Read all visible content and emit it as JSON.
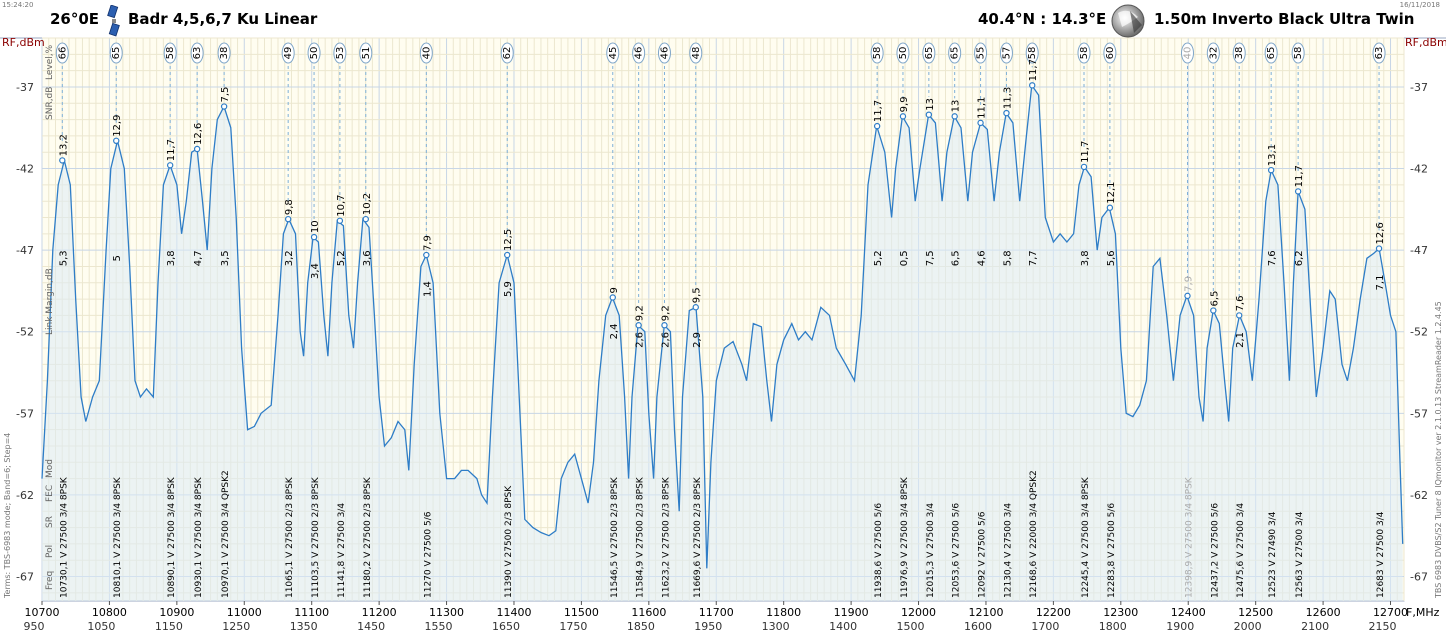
{
  "header": {
    "time": "15:24:20",
    "date": "16/11/2018",
    "orbital": "26°0E",
    "satellite": "Badr 4,5,6,7 Ku Linear",
    "location": "40.4°N : 14.3°E",
    "dish": "1.50m  Inverto Black Ultra Twin",
    "icons": [
      "satellite-icon",
      "globe-dish-icon"
    ]
  },
  "side_left": "Terms:  TBS-6983 mode; Band=6; Step=4",
  "side_right": "TBS 6983 DVBS/S2 Tuner 8    IQmonitor  ver 2.1.0.13    StreamReader 1.2.4.45",
  "chart_data": {
    "type": "line",
    "title": "",
    "ylabel": "RF,dBm",
    "xlabel": "F,MHz",
    "ylim": [
      -68.5,
      -34
    ],
    "xlim": [
      10700,
      12720
    ],
    "yticks": [
      -37,
      -42,
      -47,
      -52,
      -57,
      -62,
      -67
    ],
    "xticks": [
      10700,
      10800,
      10900,
      11000,
      11100,
      11200,
      11300,
      11400,
      11500,
      11600,
      11700,
      11800,
      11900,
      12000,
      12100,
      12200,
      12300,
      12400,
      12500,
      12600,
      12700
    ],
    "if_ticks": [
      "950",
      "1050",
      "1150",
      "1250",
      "1350",
      "1450",
      "1550",
      "1650",
      "1750",
      "1850",
      "1950",
      "1300",
      "1400",
      "1500",
      "1600",
      "1700",
      "1800",
      "1900",
      "2000",
      "2100",
      "2150"
    ],
    "row_labels_top": [
      "Level,%",
      "SNR,dB"
    ],
    "row_label_mid": "Link Margin,dB",
    "row_labels_bottom": [
      "Freq",
      "Pol",
      "SR",
      "FEC",
      "Mod"
    ],
    "grid": true,
    "spectrum": [
      [
        10700,
        -61
      ],
      [
        10708,
        -55
      ],
      [
        10716,
        -47
      ],
      [
        10724,
        -43
      ],
      [
        10733,
        -41.5
      ],
      [
        10742,
        -43
      ],
      [
        10750,
        -50
      ],
      [
        10758,
        -56
      ],
      [
        10765,
        -57.5
      ],
      [
        10775,
        -56
      ],
      [
        10785,
        -55
      ],
      [
        10795,
        -47
      ],
      [
        10802,
        -42
      ],
      [
        10812,
        -40.3
      ],
      [
        10822,
        -42
      ],
      [
        10830,
        -48
      ],
      [
        10838,
        -55
      ],
      [
        10846,
        -56
      ],
      [
        10855,
        -55.5
      ],
      [
        10865,
        -56
      ],
      [
        10872,
        -49
      ],
      [
        10880,
        -43
      ],
      [
        10890,
        -41.8
      ],
      [
        10900,
        -43
      ],
      [
        10907,
        -46
      ],
      [
        10914,
        -44
      ],
      [
        10922,
        -41
      ],
      [
        10930,
        -40.8
      ],
      [
        10938,
        -44
      ],
      [
        10945,
        -47
      ],
      [
        10952,
        -42
      ],
      [
        10960,
        -39
      ],
      [
        10970,
        -38.2
      ],
      [
        10980,
        -39.5
      ],
      [
        10988,
        -45
      ],
      [
        10996,
        -53
      ],
      [
        11005,
        -58
      ],
      [
        11015,
        -57.8
      ],
      [
        11025,
        -57
      ],
      [
        11040,
        -56.5
      ],
      [
        11050,
        -51
      ],
      [
        11058,
        -46
      ],
      [
        11066,
        -45.1
      ],
      [
        11076,
        -46
      ],
      [
        11083,
        -52
      ],
      [
        11088,
        -53.5
      ],
      [
        11094,
        -49
      ],
      [
        11102,
        -46.2
      ],
      [
        11110,
        -46.5
      ],
      [
        11118,
        -51
      ],
      [
        11124,
        -53.5
      ],
      [
        11130,
        -49
      ],
      [
        11138,
        -45.2
      ],
      [
        11147,
        -45.5
      ],
      [
        11155,
        -51
      ],
      [
        11162,
        -53
      ],
      [
        11168,
        -49
      ],
      [
        11176,
        -45.1
      ],
      [
        11185,
        -45.6
      ],
      [
        11193,
        -51
      ],
      [
        11200,
        -56
      ],
      [
        11208,
        -59
      ],
      [
        11218,
        -58.5
      ],
      [
        11228,
        -57.5
      ],
      [
        11238,
        -58
      ],
      [
        11244,
        -60.5
      ],
      [
        11252,
        -54
      ],
      [
        11262,
        -48
      ],
      [
        11270,
        -47.3
      ],
      [
        11280,
        -49
      ],
      [
        11290,
        -57
      ],
      [
        11300,
        -61
      ],
      [
        11312,
        -61
      ],
      [
        11322,
        -60.5
      ],
      [
        11332,
        -60.5
      ],
      [
        11345,
        -61
      ],
      [
        11352,
        -62
      ],
      [
        11360,
        -62.5
      ],
      [
        11368,
        -56
      ],
      [
        11378,
        -49
      ],
      [
        11390,
        -47.3
      ],
      [
        11400,
        -49
      ],
      [
        11410,
        -58
      ],
      [
        11416,
        -63.5
      ],
      [
        11428,
        -64
      ],
      [
        11440,
        -64.3
      ],
      [
        11452,
        -64.5
      ],
      [
        11462,
        -64.2
      ],
      [
        11470,
        -61
      ],
      [
        11480,
        -60
      ],
      [
        11490,
        -59.5
      ],
      [
        11500,
        -61
      ],
      [
        11510,
        -62.5
      ],
      [
        11518,
        -60
      ],
      [
        11526,
        -55
      ],
      [
        11536,
        -51
      ],
      [
        11546,
        -49.9
      ],
      [
        11556,
        -51
      ],
      [
        11564,
        -56
      ],
      [
        11570,
        -61
      ],
      [
        11575,
        -56
      ],
      [
        11584,
        -51.6
      ],
      [
        11594,
        -52
      ],
      [
        11600,
        -57
      ],
      [
        11607,
        -61
      ],
      [
        11612,
        -56
      ],
      [
        11623,
        -51.6
      ],
      [
        11632,
        -52
      ],
      [
        11638,
        -58
      ],
      [
        11645,
        -63
      ],
      [
        11650,
        -56
      ],
      [
        11660,
        -50.7
      ],
      [
        11670,
        -50.5
      ],
      [
        11680,
        -56
      ],
      [
        11686,
        -66.5
      ],
      [
        11692,
        -60
      ],
      [
        11700,
        -55
      ],
      [
        11712,
        -53
      ],
      [
        11725,
        -52.6
      ],
      [
        11738,
        -54
      ],
      [
        11745,
        -55
      ],
      [
        11755,
        -51.5
      ],
      [
        11767,
        -51.7
      ],
      [
        11775,
        -55
      ],
      [
        11782,
        -57.5
      ],
      [
        11790,
        -54
      ],
      [
        11800,
        -52.5
      ],
      [
        11812,
        -51.5
      ],
      [
        11822,
        -52.5
      ],
      [
        11832,
        -52
      ],
      [
        11842,
        -52.5
      ],
      [
        11855,
        -50.5
      ],
      [
        11868,
        -51
      ],
      [
        11878,
        -53
      ],
      [
        11892,
        -54
      ],
      [
        11905,
        -55
      ],
      [
        11915,
        -51
      ],
      [
        11925,
        -43
      ],
      [
        11938,
        -39.4
      ],
      [
        11950,
        -41
      ],
      [
        11960,
        -45
      ],
      [
        11966,
        -42
      ],
      [
        11976,
        -38.8
      ],
      [
        11986,
        -39.5
      ],
      [
        11995,
        -44
      ],
      [
        12002,
        -42
      ],
      [
        12015,
        -38.7
      ],
      [
        12025,
        -39.2
      ],
      [
        12035,
        -44
      ],
      [
        12042,
        -41
      ],
      [
        12053,
        -38.8
      ],
      [
        12063,
        -39.5
      ],
      [
        12073,
        -44
      ],
      [
        12080,
        -41
      ],
      [
        12092,
        -39.2
      ],
      [
        12102,
        -39.6
      ],
      [
        12112,
        -44
      ],
      [
        12120,
        -41
      ],
      [
        12130,
        -38.6
      ],
      [
        12140,
        -39.2
      ],
      [
        12150,
        -44
      ],
      [
        12160,
        -40
      ],
      [
        12168,
        -36.9
      ],
      [
        12178,
        -37.5
      ],
      [
        12188,
        -45
      ],
      [
        12200,
        -46.5
      ],
      [
        12210,
        -46
      ],
      [
        12220,
        -46.5
      ],
      [
        12230,
        -46
      ],
      [
        12238,
        -43
      ],
      [
        12246,
        -41.9
      ],
      [
        12256,
        -42.5
      ],
      [
        12265,
        -47
      ],
      [
        12272,
        -45
      ],
      [
        12283,
        -44.4
      ],
      [
        12292,
        -46
      ],
      [
        12300,
        -53
      ],
      [
        12308,
        -57
      ],
      [
        12318,
        -57.2
      ],
      [
        12328,
        -56.5
      ],
      [
        12338,
        -55
      ],
      [
        12348,
        -48
      ],
      [
        12358,
        -47.5
      ],
      [
        12368,
        -51
      ],
      [
        12378,
        -55
      ],
      [
        12388,
        -51
      ],
      [
        12398,
        -49.8
      ],
      [
        12408,
        -51
      ],
      [
        12416,
        -56
      ],
      [
        12422,
        -57.5
      ],
      [
        12428,
        -53
      ],
      [
        12437,
        -50.7
      ],
      [
        12446,
        -51.5
      ],
      [
        12454,
        -55
      ],
      [
        12460,
        -57.5
      ],
      [
        12466,
        -53
      ],
      [
        12476,
        -51
      ],
      [
        12486,
        -52
      ],
      [
        12495,
        -55
      ],
      [
        12505,
        -50
      ],
      [
        12515,
        -44
      ],
      [
        12523,
        -42.1
      ],
      [
        12533,
        -43
      ],
      [
        12542,
        -49
      ],
      [
        12550,
        -55
      ],
      [
        12556,
        -49
      ],
      [
        12563,
        -43.4
      ],
      [
        12573,
        -44.5
      ],
      [
        12582,
        -51
      ],
      [
        12590,
        -56
      ],
      [
        12600,
        -53
      ],
      [
        12610,
        -49.5
      ],
      [
        12618,
        -50
      ],
      [
        12628,
        -54
      ],
      [
        12636,
        -55
      ],
      [
        12645,
        -53
      ],
      [
        12655,
        -50
      ],
      [
        12665,
        -47.5
      ],
      [
        12675,
        -47.2
      ],
      [
        12683,
        -46.9
      ],
      [
        12692,
        -49
      ],
      [
        12700,
        -51
      ],
      [
        12708,
        -52
      ],
      [
        12714,
        -60
      ],
      [
        12718,
        -65
      ]
    ],
    "transponders": [
      {
        "freq": 10730.1,
        "pol": "V",
        "sr": 27500,
        "fec": "3/4",
        "mod": "8PSK",
        "level": 66,
        "snr": "13,2",
        "margin": "5,3",
        "peak": -41.5
      },
      {
        "freq": 10810.1,
        "pol": "V",
        "sr": 27500,
        "fec": "3/4",
        "mod": "8PSK",
        "level": 65,
        "snr": "12,9",
        "margin": "5",
        "peak": -40.3
      },
      {
        "freq": 10890.1,
        "pol": "V",
        "sr": 27500,
        "fec": "3/4",
        "mod": "8PSK",
        "level": 58,
        "snr": "11,7",
        "margin": "3,8",
        "peak": -41.8
      },
      {
        "freq": 10930.1,
        "pol": "V",
        "sr": 27500,
        "fec": "3/4",
        "mod": "8PSK",
        "level": 63,
        "snr": "12,6",
        "margin": "4,7",
        "peak": -40.8
      },
      {
        "freq": 10970.1,
        "pol": "V",
        "sr": 27500,
        "fec": "3/4",
        "mod": "QPSK2",
        "level": 38,
        "snr": "7,5",
        "margin": "3,5",
        "peak": -38.2
      },
      {
        "freq": 11065.1,
        "pol": "V",
        "sr": 27500,
        "fec": "2/3",
        "mod": "8PSK",
        "level": 49,
        "snr": "9,8",
        "margin": "3,2",
        "peak": -45.1
      },
      {
        "freq": 11103.5,
        "pol": "V",
        "sr": 27500,
        "fec": "2/3",
        "mod": "8PSK",
        "level": 50,
        "snr": "10",
        "margin": "3,4",
        "peak": -46.2
      },
      {
        "freq": 11141.8,
        "pol": "V",
        "sr": 27500,
        "fec": "3/4",
        "mod": "",
        "level": 53,
        "snr": "10,7",
        "margin": "5,2",
        "peak": -45.2
      },
      {
        "freq": 11180.2,
        "pol": "V",
        "sr": 27500,
        "fec": "2/3",
        "mod": "8PSK",
        "level": 51,
        "snr": "10,2",
        "margin": "3,6",
        "peak": -45.1
      },
      {
        "freq": 11270,
        "pol": "V",
        "sr": 27500,
        "fec": "5/6",
        "mod": "",
        "level": 40,
        "snr": "7,9",
        "margin": "1,4",
        "peak": -47.3
      },
      {
        "freq": 11390,
        "pol": "V",
        "sr": 27500,
        "fec": "2/3",
        "mod": "8PSK",
        "level": 62,
        "snr": "12,5",
        "margin": "5,9",
        "peak": -47.3
      },
      {
        "freq": 11546.5,
        "pol": "V",
        "sr": 27500,
        "fec": "2/3",
        "mod": "8PSK",
        "level": 45,
        "snr": "9",
        "margin": "2,4",
        "peak": -49.9
      },
      {
        "freq": 11584.9,
        "pol": "V",
        "sr": 27500,
        "fec": "2/3",
        "mod": "8PSK",
        "level": 46,
        "snr": "9,2",
        "margin": "2,6",
        "peak": -51.6
      },
      {
        "freq": 11623.2,
        "pol": "V",
        "sr": 27500,
        "fec": "2/3",
        "mod": "8PSK",
        "level": 46,
        "snr": "9,2",
        "margin": "2,6",
        "peak": -51.6
      },
      {
        "freq": 11669.6,
        "pol": "V",
        "sr": 27500,
        "fec": "2/3",
        "mod": "8PSK",
        "level": 48,
        "snr": "9,5",
        "margin": "2,9",
        "peak": -50.5
      },
      {
        "freq": 11938.6,
        "pol": "V",
        "sr": 27500,
        "fec": "5/6",
        "mod": "",
        "level": 58,
        "snr": "11,7",
        "margin": "5,2",
        "peak": -39.4
      },
      {
        "freq": 11976.9,
        "pol": "V",
        "sr": 27500,
        "fec": "3/4",
        "mod": "8PSK",
        "level": 50,
        "snr": "9,9",
        "margin": "0,5",
        "peak": -38.8
      },
      {
        "freq": 12015.3,
        "pol": "V",
        "sr": 27500,
        "fec": "3/4",
        "mod": "",
        "level": 65,
        "snr": "13",
        "margin": "7,5",
        "peak": -38.7
      },
      {
        "freq": 12053.6,
        "pol": "V",
        "sr": 27500,
        "fec": "5/6",
        "mod": "",
        "level": 65,
        "snr": "13",
        "margin": "6,5",
        "peak": -38.8
      },
      {
        "freq": 12092,
        "pol": "V",
        "sr": 27500,
        "fec": "5/6",
        "mod": "",
        "level": 55,
        "snr": "11,1",
        "margin": "4,6",
        "peak": -39.2
      },
      {
        "freq": 12130.4,
        "pol": "V",
        "sr": 27500,
        "fec": "3/4",
        "mod": "",
        "level": 57,
        "snr": "11,3",
        "margin": "5,8",
        "peak": -38.6
      },
      {
        "freq": 12168.6,
        "pol": "V",
        "sr": 22000,
        "fec": "3/4",
        "mod": "QPSK2",
        "level": 58,
        "snr": "11,7",
        "margin": "7,7",
        "peak": -36.9
      },
      {
        "freq": 12245.4,
        "pol": "V",
        "sr": 27500,
        "fec": "3/4",
        "mod": "8PSK",
        "level": 58,
        "snr": "11,7",
        "margin": "3,8",
        "peak": -41.9
      },
      {
        "freq": 12283.8,
        "pol": "V",
        "sr": 27500,
        "fec": "5/6",
        "mod": "",
        "level": 60,
        "snr": "12,1",
        "margin": "5,6",
        "peak": -44.4
      },
      {
        "freq": 12398.9,
        "pol": "V",
        "sr": 27500,
        "fec": "3/4",
        "mod": "8PSK",
        "level": 40,
        "snr": "7,9",
        "margin": "",
        "peak": -49.8,
        "dim": true
      },
      {
        "freq": 12437.2,
        "pol": "V",
        "sr": 27500,
        "fec": "5/6",
        "mod": "",
        "level": 32,
        "snr": "6,5",
        "margin": "",
        "peak": -50.7
      },
      {
        "freq": 12475.6,
        "pol": "V",
        "sr": 27500,
        "fec": "3/4",
        "mod": "",
        "level": 38,
        "snr": "7,6",
        "margin": "2,1",
        "peak": -51
      },
      {
        "freq": 12523,
        "pol": "V",
        "sr": 27490,
        "fec": "3/4",
        "mod": "",
        "level": 65,
        "snr": "13,1",
        "margin": "7,6",
        "peak": -42.1
      },
      {
        "freq": 12563,
        "pol": "V",
        "sr": 27500,
        "fec": "3/4",
        "mod": "",
        "level": 58,
        "snr": "11,7",
        "margin": "6,2",
        "peak": -43.4
      },
      {
        "freq": 12683,
        "pol": "V",
        "sr": 27500,
        "fec": "3/4",
        "mod": "",
        "level": 63,
        "snr": "12,6",
        "margin": "7,1",
        "peak": -46.9
      }
    ]
  }
}
